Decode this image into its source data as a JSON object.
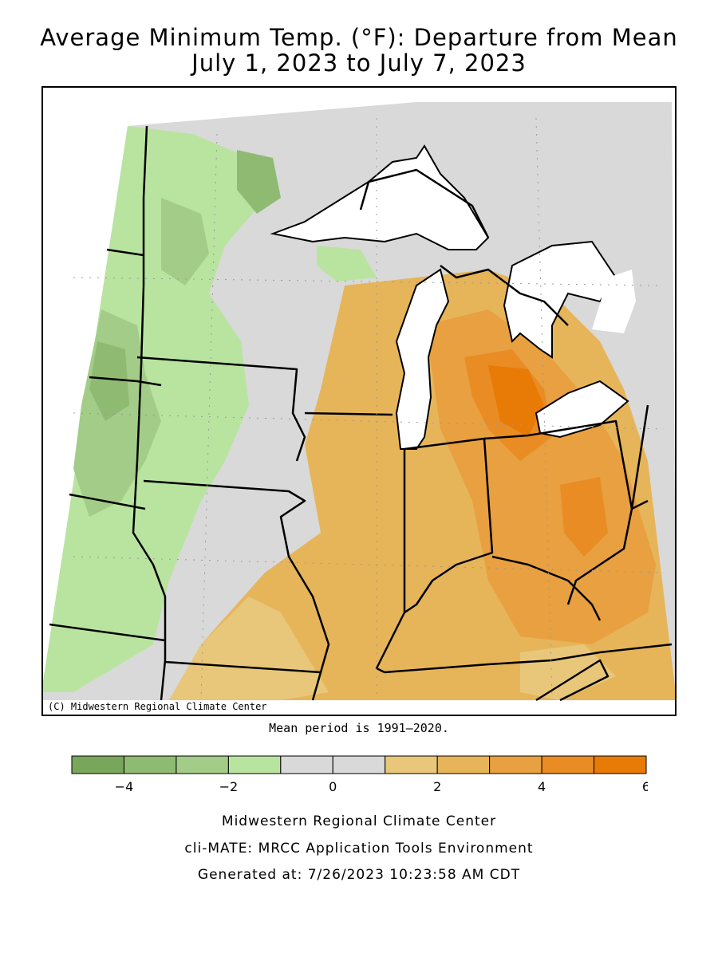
{
  "title": {
    "line1": "Average Minimum Temp. (°F): Departure from Mean",
    "line2": "July 1, 2023 to July 7, 2023"
  },
  "map": {
    "credit": "(C) Midwestern Regional Climate Center",
    "region": "Midwest United States"
  },
  "mean_period": "Mean period is 1991–2020.",
  "legend": {
    "bins": [
      {
        "from": -5,
        "to": -4,
        "color": "#78a65a"
      },
      {
        "from": -4,
        "to": -3,
        "color": "#8fba72"
      },
      {
        "from": -3,
        "to": -2,
        "color": "#a3cc88"
      },
      {
        "from": -2,
        "to": -1,
        "color": "#b9e4a0"
      },
      {
        "from": -1,
        "to": 0,
        "color": "#d9d9d9"
      },
      {
        "from": 0,
        "to": 1,
        "color": "#d9d9d9"
      },
      {
        "from": 1,
        "to": 2,
        "color": "#e8c77a"
      },
      {
        "from": 2,
        "to": 3,
        "color": "#e6b55a"
      },
      {
        "from": 3,
        "to": 4,
        "color": "#e8a040"
      },
      {
        "from": 4,
        "to": 5,
        "color": "#e98c24"
      },
      {
        "from": 5,
        "to": 6,
        "color": "#e87a06"
      }
    ],
    "tick_labels": [
      "−4",
      "−2",
      "0",
      "2",
      "4",
      "6"
    ]
  },
  "footer": {
    "line1": "Midwestern Regional Climate Center",
    "line2": "cli-MATE: MRCC Application Tools Environment",
    "line3": "Generated at: 7/26/2023 10:23:58 AM CDT"
  }
}
